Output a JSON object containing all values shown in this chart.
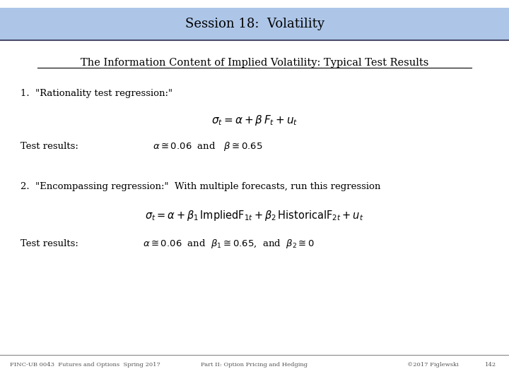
{
  "title": "Session 18:  Volatility",
  "title_bg_color": "#adc6e8",
  "subtitle": "The Information Content of Implied Volatility: Typical Test Results",
  "bg_color": "#ffffff",
  "footer_left": "FINC-UB 0043  Futures and Options  Spring 2017",
  "footer_center": "Part II: Option Pricing and Hedging",
  "footer_right": "©2017 Figlewski",
  "footer_page": "142",
  "text_color": "#000000",
  "header_text_color": "#000000",
  "line1_label": "1.  \"Rationality test regression:\"",
  "testresults1_label": "Test results:",
  "line2_label": "2.  \"Encompassing regression:\"  With multiple forecasts, run this regression",
  "testresults2_label": "Test results:"
}
